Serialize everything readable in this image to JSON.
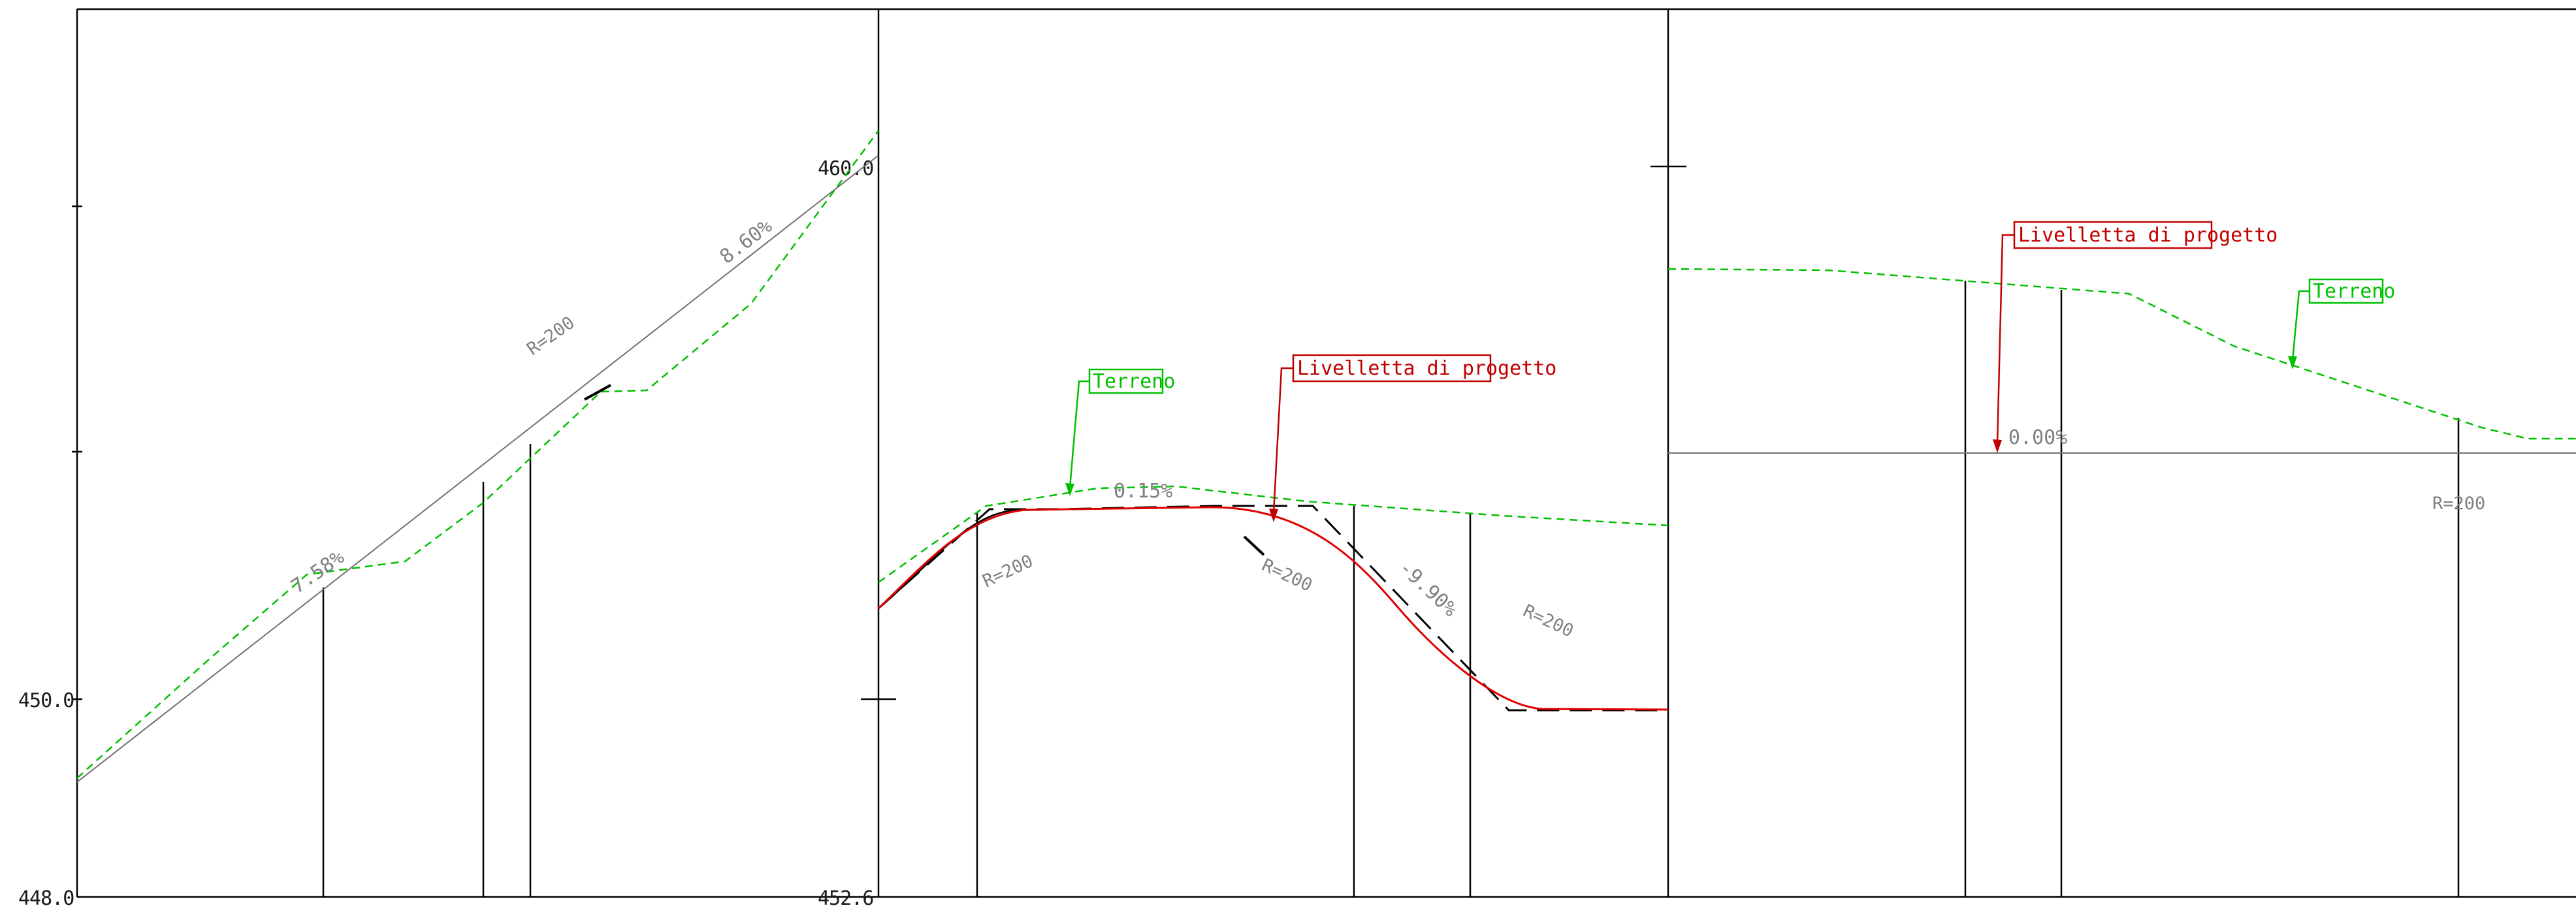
{
  "elevations": {
    "left_top": "",
    "left_450": "450.0",
    "left_448": "448.0",
    "mid_460": "460.0",
    "mid_4526": "452.6"
  },
  "grades": {
    "g1": "7.58%",
    "g2": "8.60%",
    "g3": "0.15%",
    "g4": "-9.90%",
    "g5": "0.00%"
  },
  "radii": {
    "r1": "R=200",
    "r2": "R=200",
    "r3": "R=200",
    "r4": "R=200",
    "r5": "R=200"
  },
  "callouts": {
    "terrain": "Terreno",
    "design": "Livelletta di progetto"
  },
  "colors": {
    "terrain": "#00c000",
    "design": "#e00000",
    "frame": "#000000",
    "annotation": "#808080"
  }
}
